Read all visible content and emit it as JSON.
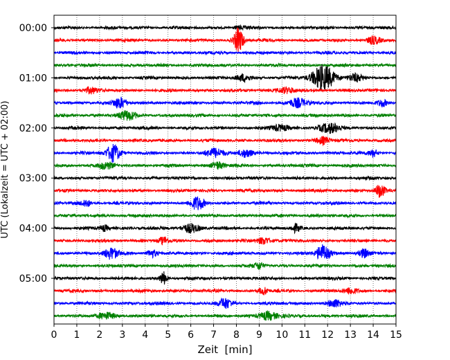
{
  "chart_data": {
    "type": "line",
    "title": "",
    "xlabel": "Zeit  [min]",
    "ylabel": "UTC (Lokalzeit = UTC + 02:00)",
    "xlim": [
      0,
      15
    ],
    "xticks": [
      0,
      1,
      2,
      3,
      4,
      5,
      6,
      7,
      8,
      9,
      10,
      11,
      12,
      13,
      14,
      15
    ],
    "ytick_labels": [
      "00:00",
      "01:00",
      "02:00",
      "03:00",
      "04:00",
      "05:00"
    ],
    "grid": "vertical dotted lines at each minute",
    "trace_minutes": 15,
    "colors": [
      "#000000",
      "#ff0000",
      "#0000ff",
      "#008000"
    ],
    "traces": [
      {
        "start": "00:00",
        "color": "#000000",
        "events": [
          [
            8.1,
            0.25,
            2
          ]
        ]
      },
      {
        "start": "00:15",
        "color": "#ff0000",
        "events": [
          [
            8.1,
            0.2,
            18
          ],
          [
            14.0,
            0.3,
            5
          ]
        ]
      },
      {
        "start": "00:30",
        "color": "#0000ff",
        "events": []
      },
      {
        "start": "00:45",
        "color": "#008000",
        "events": []
      },
      {
        "start": "01:00",
        "color": "#000000",
        "events": [
          [
            11.8,
            0.5,
            18
          ],
          [
            8.3,
            0.3,
            5
          ],
          [
            13.2,
            0.3,
            5
          ]
        ]
      },
      {
        "start": "01:15",
        "color": "#ff0000",
        "events": [
          [
            1.6,
            0.3,
            4
          ],
          [
            10.2,
            0.4,
            4
          ]
        ]
      },
      {
        "start": "01:30",
        "color": "#0000ff",
        "events": [
          [
            2.9,
            0.3,
            7
          ],
          [
            10.7,
            0.4,
            6
          ],
          [
            14.4,
            0.2,
            5
          ]
        ]
      },
      {
        "start": "01:45",
        "color": "#008000",
        "events": [
          [
            3.2,
            0.4,
            6
          ]
        ]
      },
      {
        "start": "02:00",
        "color": "#000000",
        "events": [
          [
            12.1,
            0.5,
            6
          ],
          [
            9.9,
            0.4,
            4
          ]
        ]
      },
      {
        "start": "02:15",
        "color": "#ff0000",
        "events": [
          [
            11.8,
            0.3,
            5
          ]
        ]
      },
      {
        "start": "02:30",
        "color": "#0000ff",
        "events": [
          [
            2.6,
            0.3,
            12
          ],
          [
            7.0,
            0.4,
            6
          ],
          [
            8.4,
            0.3,
            6
          ],
          [
            14.0,
            0.2,
            5
          ]
        ]
      },
      {
        "start": "02:45",
        "color": "#008000",
        "events": [
          [
            2.3,
            0.3,
            5
          ],
          [
            7.2,
            0.3,
            5
          ]
        ]
      },
      {
        "start": "03:00",
        "color": "#000000",
        "events": []
      },
      {
        "start": "03:15",
        "color": "#ff0000",
        "events": [
          [
            14.3,
            0.2,
            9
          ]
        ]
      },
      {
        "start": "03:30",
        "color": "#0000ff",
        "events": [
          [
            6.3,
            0.3,
            9
          ],
          [
            1.4,
            0.2,
            5
          ]
        ]
      },
      {
        "start": "03:45",
        "color": "#008000",
        "events": []
      },
      {
        "start": "04:00",
        "color": "#000000",
        "events": [
          [
            6.0,
            0.4,
            6
          ],
          [
            10.6,
            0.2,
            5
          ],
          [
            2.2,
            0.2,
            4
          ]
        ]
      },
      {
        "start": "04:15",
        "color": "#ff0000",
        "events": [
          [
            4.8,
            0.2,
            5
          ],
          [
            9.2,
            0.3,
            5
          ]
        ]
      },
      {
        "start": "04:30",
        "color": "#0000ff",
        "events": [
          [
            2.5,
            0.3,
            8
          ],
          [
            11.8,
            0.3,
            12
          ],
          [
            13.6,
            0.2,
            6
          ],
          [
            4.3,
            0.2,
            5
          ]
        ]
      },
      {
        "start": "04:45",
        "color": "#008000",
        "events": [
          [
            9.0,
            0.2,
            5
          ]
        ]
      },
      {
        "start": "05:00",
        "color": "#000000",
        "events": [
          [
            4.8,
            0.15,
            9
          ]
        ]
      },
      {
        "start": "05:15",
        "color": "#ff0000",
        "events": [
          [
            9.2,
            0.2,
            5
          ],
          [
            13.0,
            0.3,
            4
          ]
        ]
      },
      {
        "start": "05:30",
        "color": "#0000ff",
        "events": [
          [
            7.5,
            0.3,
            7
          ],
          [
            12.3,
            0.3,
            5
          ]
        ]
      },
      {
        "start": "05:45",
        "color": "#008000",
        "events": [
          [
            9.4,
            0.4,
            6
          ],
          [
            2.3,
            0.4,
            4
          ]
        ]
      }
    ]
  }
}
